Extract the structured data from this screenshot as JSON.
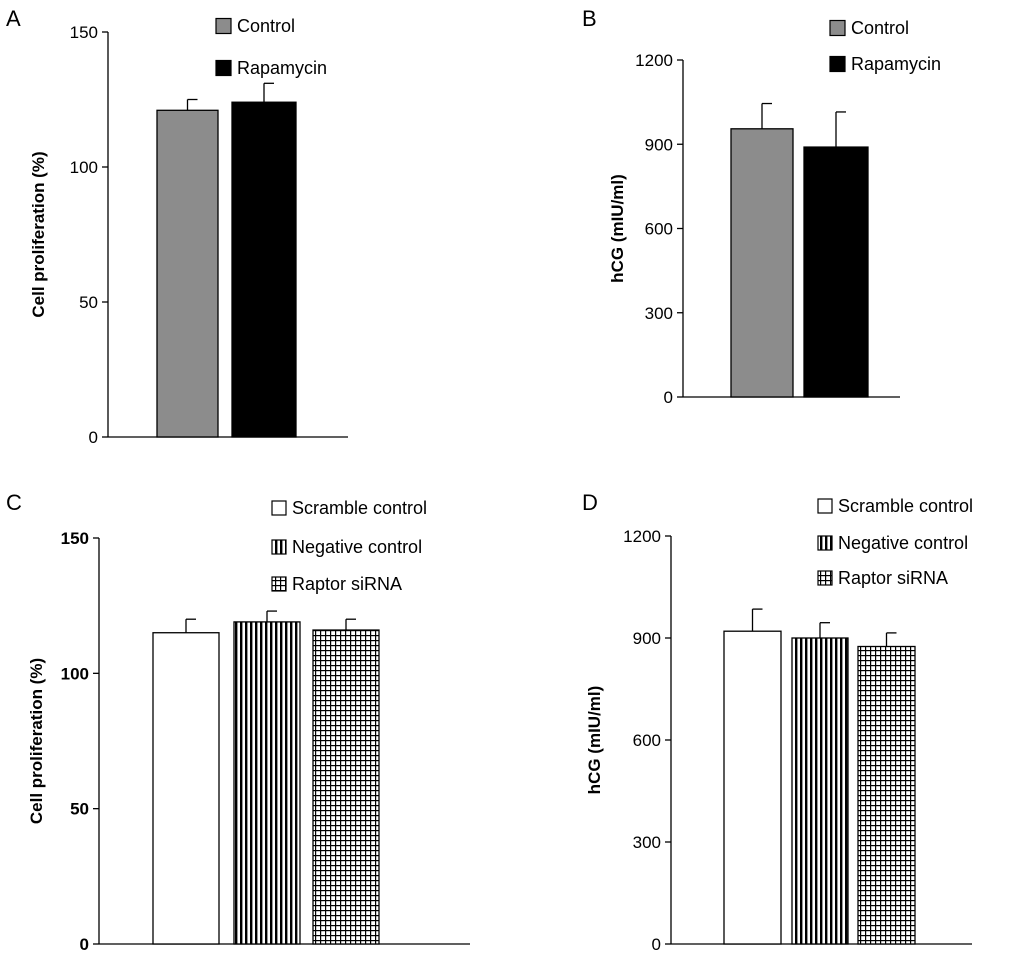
{
  "chart_data": [
    {
      "panel": "A",
      "type": "bar",
      "ylabel": "Cell proliferation (%)",
      "ylim": [
        0,
        150
      ],
      "yticks": [
        0,
        50,
        100,
        150
      ],
      "tick_style": "normal",
      "legend_position": "top",
      "series": [
        {
          "name": "Control",
          "value": 121,
          "error": 4,
          "fill": "gray"
        },
        {
          "name": "Rapamycin",
          "value": 124,
          "error": 7,
          "fill": "black"
        }
      ]
    },
    {
      "panel": "B",
      "type": "bar",
      "ylabel": "hCG (mIU/ml)",
      "ylim": [
        0,
        1200
      ],
      "yticks": [
        0,
        300,
        600,
        900,
        1200
      ],
      "tick_style": "normal",
      "legend_position": "top",
      "series": [
        {
          "name": "Control",
          "value": 955,
          "error": 90,
          "fill": "gray"
        },
        {
          "name": "Rapamycin",
          "value": 890,
          "error": 125,
          "fill": "black"
        }
      ]
    },
    {
      "panel": "C",
      "type": "bar",
      "ylabel": "Cell proliferation (%)",
      "ylim": [
        0,
        150
      ],
      "yticks": [
        0,
        50,
        100,
        150
      ],
      "tick_style": "bold",
      "legend_position": "top-right",
      "series": [
        {
          "name": "Scramble control",
          "value": 115,
          "error": 5,
          "fill": "white"
        },
        {
          "name": "Negative control",
          "value": 119,
          "error": 4,
          "fill": "vstripe"
        },
        {
          "name": "Raptor siRNA",
          "value": 116,
          "error": 4,
          "fill": "grid"
        }
      ]
    },
    {
      "panel": "D",
      "type": "bar",
      "ylabel": "hCG (mIU/ml)",
      "ylim": [
        0,
        1200
      ],
      "yticks": [
        0,
        300,
        600,
        900,
        1200
      ],
      "tick_style": "normal",
      "legend_position": "top-right",
      "series": [
        {
          "name": "Scramble control",
          "value": 920,
          "error": 65,
          "fill": "white"
        },
        {
          "name": "Negative control",
          "value": 900,
          "error": 45,
          "fill": "vstripe"
        },
        {
          "name": "Raptor siRNA",
          "value": 875,
          "error": 40,
          "fill": "grid"
        }
      ]
    }
  ],
  "colors": {
    "gray": "#8c8c8c",
    "black": "#000000",
    "white": "#ffffff",
    "axis": "#000000"
  }
}
